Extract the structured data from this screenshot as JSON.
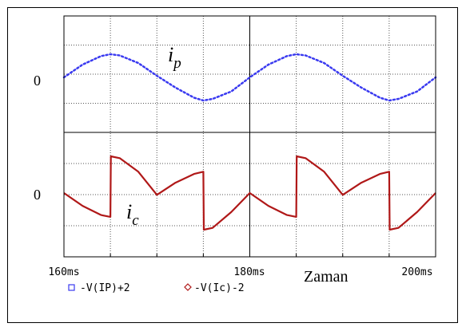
{
  "chart_data": {
    "type": "line",
    "x_unit": "ms",
    "xlim": [
      160,
      200
    ],
    "x_ticks": [
      "160ms",
      "180ms",
      "200ms"
    ],
    "xlabel": "Zaman",
    "panels": [
      {
        "zero_label": "0",
        "series_label": "i_p",
        "series": [
          {
            "name": "-V(IP)+2",
            "color": "#3a3af0",
            "style": "dotted",
            "marker": "square",
            "x": [
              160,
              162,
              164,
              165,
              166,
              168,
              170,
              172,
              174,
              175,
              176,
              178,
              180,
              182,
              184,
              185,
              186,
              188,
              190,
              192,
              194,
              195,
              196,
              198,
              200
            ],
            "y": [
              0,
              0.55,
              0.92,
              1.0,
              0.95,
              0.62,
              0.07,
              -0.44,
              -0.88,
              -1.0,
              -0.93,
              -0.61,
              0,
              0.55,
              0.92,
              1.0,
              0.95,
              0.62,
              0.07,
              -0.44,
              -0.88,
              -1.0,
              -0.93,
              -0.61,
              0
            ]
          }
        ]
      },
      {
        "zero_label": "0",
        "series_label": "i_c",
        "series": [
          {
            "name": "-V(Ic)-2",
            "color": "#b01818",
            "style": "solid",
            "marker": "diamond",
            "x": [
              160,
              162,
              164,
              165,
              165.05,
              166,
              168,
              170,
              172,
              174,
              175,
              175.05,
              176,
              178,
              180,
              182,
              184,
              185,
              185.05,
              186,
              188,
              190,
              192,
              194,
              195,
              195.05,
              196,
              198,
              200
            ],
            "y": [
              0,
              -0.35,
              -0.6,
              -0.65,
              1.0,
              0.95,
              0.58,
              -0.05,
              0.28,
              0.52,
              0.58,
              -1.0,
              -0.95,
              -0.52,
              0,
              -0.35,
              -0.6,
              -0.65,
              1.0,
              0.95,
              0.58,
              -0.05,
              0.28,
              0.52,
              0.58,
              -1.0,
              -0.95,
              -0.52,
              0
            ]
          }
        ]
      }
    ]
  }
}
